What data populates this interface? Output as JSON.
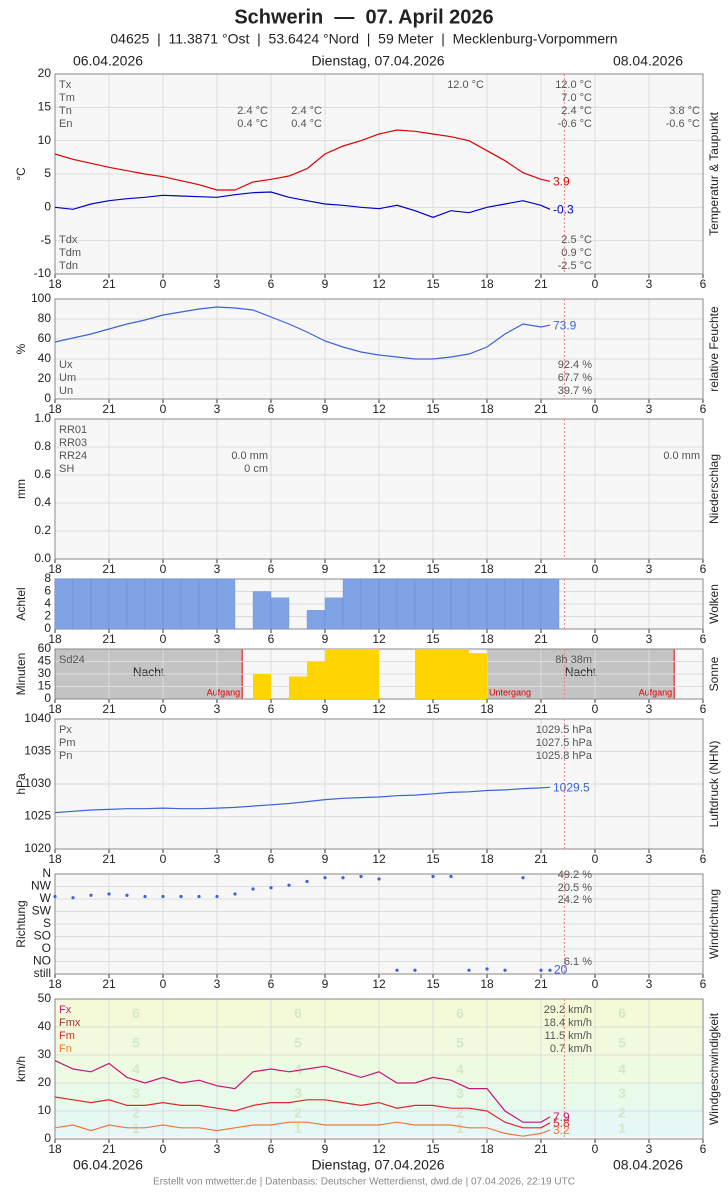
{
  "header": {
    "title": "Schwerin  —  07. April 2026",
    "subtitle": "04625  |  11.3871 °Ost  |  53.6424 °Nord  |  59 Meter  |  Mecklenburg-Vorpommern",
    "date_left": "06.04.2026",
    "date_center": "Dienstag, 07.04.2026",
    "date_right": "08.04.2026"
  },
  "footer": "Erstellt von mtwetter.de | Datenbasis: Deutscher Wetterdienst, dwd.de | 07.04.2026, 22:19 UTC",
  "time_axis": {
    "xlim": [
      -6,
      30
    ],
    "xticks": [
      {
        "value": -6,
        "label": "18"
      },
      {
        "value": -3,
        "label": "21"
      },
      0,
      3,
      6,
      9,
      12,
      15,
      18,
      21,
      {
        "value": 24,
        "label": "0"
      },
      {
        "value": 27,
        "label": "3"
      },
      {
        "value": 30,
        "label": "6"
      }
    ],
    "now": 22.3,
    "x": [
      -6,
      -5,
      -4,
      -3,
      -2,
      -1,
      0,
      1,
      2,
      3,
      4,
      5,
      6,
      7,
      8,
      9,
      10,
      11,
      12,
      13,
      14,
      15,
      16,
      17,
      18,
      19,
      20,
      21,
      21.5
    ]
  },
  "chart_data": [
    {
      "type": "line",
      "ylabel": "°C",
      "side_label": "Temperatur & Taupunkt",
      "ylim": [
        -10,
        20
      ],
      "yticks": [
        -10,
        -5,
        0,
        5,
        10,
        15,
        20
      ],
      "grid": true,
      "series": [
        {
          "color": "#e00000",
          "values": [
            8,
            7.2,
            6.6,
            6,
            5.5,
            5,
            4.6,
            4,
            3.4,
            2.6,
            2.6,
            3.8,
            4.2,
            4.7,
            5.8,
            8,
            9.2,
            10,
            11,
            11.6,
            11.4,
            11,
            10.6,
            10,
            8.5,
            7,
            5.2,
            4.2,
            3.9
          ]
        },
        {
          "color": "#0000cc",
          "values": [
            0,
            -0.3,
            0.5,
            1,
            1.3,
            1.5,
            1.8,
            1.7,
            1.6,
            1.5,
            1.9,
            2.2,
            2.3,
            1.5,
            1,
            0.5,
            0.3,
            0,
            -0.2,
            0.3,
            -0.5,
            -1.5,
            -0.5,
            -0.8,
            0,
            0.5,
            1,
            0.3,
            -0.3
          ]
        }
      ],
      "info": [
        {
          "label": "Tx",
          "values": [
            null,
            null,
            "12.0 °C",
            "12.0 °C",
            null
          ]
        },
        {
          "label": "Tm",
          "values": [
            null,
            null,
            null,
            "7.0 °C",
            null
          ]
        },
        {
          "label": "Tn",
          "values": [
            "2.4 °C",
            "2.4 °C",
            null,
            "2.4 °C",
            "3.8 °C"
          ]
        },
        {
          "label": "En",
          "values": [
            "0.4 °C",
            "0.4 °C",
            null,
            "-0.6 °C",
            "-0.6 °C"
          ]
        },
        {
          "label": "Tdx",
          "values": [
            null,
            null,
            null,
            "2.5 °C",
            null
          ]
        },
        {
          "label": "Tdm",
          "values": [
            null,
            null,
            null,
            "0.9 °C",
            null
          ]
        },
        {
          "label": "Tdn",
          "values": [
            null,
            null,
            null,
            "-2.5 °C",
            null
          ]
        }
      ]
    },
    {
      "type": "line",
      "ylabel": "%",
      "side_label": "relative Feuchte",
      "ylim": [
        0,
        100
      ],
      "yticks": [
        0,
        20,
        40,
        60,
        80,
        100
      ],
      "grid": true,
      "series": [
        {
          "color": "#3a64d8",
          "values": [
            57,
            61,
            65,
            70,
            75,
            79,
            84,
            87,
            90,
            92,
            91,
            89,
            82,
            75,
            67,
            58,
            52,
            47,
            44,
            42,
            40,
            40,
            42,
            45,
            52,
            65,
            75,
            72,
            73.9
          ]
        }
      ],
      "info": [
        {
          "label": "Ux",
          "values": [
            "92.4 %"
          ]
        },
        {
          "label": "Um",
          "values": [
            "67.7 %"
          ]
        },
        {
          "label": "Un",
          "values": [
            "39.7 %"
          ]
        }
      ]
    },
    {
      "type": "bar",
      "ylabel": "mm",
      "side_label": "Niederschlag",
      "ylim": [
        0,
        1
      ],
      "yticks": [
        {
          "value": 0,
          "label": "0.0"
        },
        0.2,
        0.4,
        0.6,
        0.8,
        {
          "value": 1,
          "label": "1.0"
        }
      ],
      "grid": true,
      "series": [],
      "info": [
        {
          "label": "RR01",
          "values": [
            null,
            null
          ]
        },
        {
          "label": "RR03",
          "values": [
            null,
            null
          ]
        },
        {
          "label": "RR24",
          "values": [
            "0.0 mm",
            "0.0 mm"
          ]
        },
        {
          "label": "SH",
          "values": [
            "0 cm",
            null
          ]
        }
      ]
    },
    {
      "type": "bar",
      "ylabel": "Achtel",
      "side_label": "Wolken",
      "ylim": [
        0,
        8
      ],
      "yticks": [
        0,
        2,
        4,
        6,
        8
      ],
      "grid": true,
      "series": [
        {
          "color": "#7fa3e4",
          "values": [
            8,
            8,
            8,
            8,
            8,
            8,
            8,
            8,
            8,
            8,
            0,
            6,
            5,
            0,
            3,
            5,
            8,
            8,
            8,
            8,
            8,
            8,
            8,
            8,
            8,
            8,
            8,
            8,
            null
          ]
        }
      ]
    },
    {
      "type": "bar",
      "ylabel": "Minuten",
      "side_label": "Sonne",
      "ylim": [
        0,
        60
      ],
      "yticks": [
        0,
        15,
        30,
        45,
        60
      ],
      "grid": true,
      "series": [
        {
          "color": "#ffd400",
          "values": [
            0,
            0,
            0,
            0,
            0,
            0,
            0,
            0,
            0,
            0,
            0,
            30,
            0,
            27,
            45,
            60,
            60,
            60,
            0,
            0,
            60,
            60,
            60,
            55,
            0,
            0,
            0,
            0,
            null
          ]
        }
      ],
      "nights": [
        {
          "from": -6,
          "to": 4.4,
          "label": "Nacht"
        },
        {
          "from": 18,
          "to": 28.4,
          "label": "Nacht"
        }
      ],
      "events": [
        {
          "x": 4.4,
          "label": "Aufgang"
        },
        {
          "x": 18,
          "label": "Untergang"
        },
        {
          "x": 28.4,
          "label": "Aufgang"
        }
      ],
      "info": [
        {
          "label": "Sd24",
          "values": [
            "8h 38m"
          ]
        }
      ]
    },
    {
      "type": "line",
      "ylabel": "hPa",
      "side_label": "Luftdruck (NHN)",
      "ylim": [
        1020,
        1040
      ],
      "yticks": [
        1020,
        1025,
        1030,
        1035,
        1040
      ],
      "grid": true,
      "series": [
        {
          "color": "#3a64d8",
          "values": [
            1025.6,
            1025.8,
            1026,
            1026.1,
            1026.2,
            1026.2,
            1026.3,
            1026.2,
            1026.2,
            1026.3,
            1026.4,
            1026.6,
            1026.8,
            1027,
            1027.3,
            1027.6,
            1027.8,
            1027.9,
            1028,
            1028.2,
            1028.3,
            1028.5,
            1028.7,
            1028.8,
            1029,
            1029.1,
            1029.3,
            1029.4,
            1029.5
          ]
        }
      ],
      "info": [
        {
          "label": "Px",
          "values": [
            "1029.5 hPa"
          ]
        },
        {
          "label": "Pm",
          "values": [
            "1027.5 hPa"
          ]
        },
        {
          "label": "Pn",
          "values": [
            "1025.8 hPa"
          ]
        }
      ]
    },
    {
      "type": "scatter",
      "ylabel": "Richtung",
      "side_label": "Windrichtung",
      "ylim": [
        0,
        8
      ],
      "yticks": [
        {
          "value": 8,
          "label": "N"
        },
        {
          "value": 7,
          "label": "NW"
        },
        {
          "value": 6,
          "label": "W"
        },
        {
          "value": 5,
          "label": "SW"
        },
        {
          "value": 4,
          "label": "S"
        },
        {
          "value": 3,
          "label": "SO"
        },
        {
          "value": 2,
          "label": "O"
        },
        {
          "value": 1,
          "label": "NO"
        },
        {
          "value": 0,
          "label": "still"
        }
      ],
      "grid": true,
      "series": [
        {
          "color": "#3a64d8",
          "end_text": "20",
          "values": [
            6.2,
            6.1,
            6.3,
            6.4,
            6.3,
            6.2,
            6.2,
            6.2,
            6.2,
            6.2,
            6.4,
            6.8,
            6.9,
            7.1,
            7.4,
            7.7,
            7.7,
            7.8,
            7.6,
            0.3,
            0.3,
            7.8,
            7.8,
            0.3,
            0.4,
            0.3,
            7.7,
            0.3,
            0.3
          ]
        }
      ],
      "info": [
        {
          "label": null,
          "values": [
            "49.2 %"
          ]
        },
        {
          "label": null,
          "values": [
            "20.5 %"
          ]
        },
        {
          "label": null,
          "values": [
            "24.2 %"
          ]
        },
        {
          "label": null,
          "values": [
            "6.1 %"
          ]
        }
      ]
    },
    {
      "type": "line",
      "ylabel": "km/h",
      "side_label": "Windgeschwindigkeit",
      "ylim": [
        0,
        50
      ],
      "yticks": [
        0,
        10,
        20,
        30,
        40,
        50
      ],
      "grid": true,
      "bands": [
        {
          "bft": 1,
          "from": 1,
          "to": 6,
          "color": "#e6f7f8"
        },
        {
          "bft": 2,
          "from": 6,
          "to": 12,
          "color": "#e6f8f2"
        },
        {
          "bft": 3,
          "from": 12,
          "to": 20,
          "color": "#e8fae8"
        },
        {
          "bft": 4,
          "from": 20,
          "to": 29,
          "color": "#edfbe2"
        },
        {
          "bft": 5,
          "from": 29,
          "to": 39,
          "color": "#f1fadc"
        },
        {
          "bft": 6,
          "from": 39,
          "to": 50,
          "color": "#f4fad8"
        }
      ],
      "series": [
        {
          "color": "#c8147a",
          "values": [
            28,
            25,
            24,
            27,
            22,
            20,
            22,
            20,
            21,
            19,
            18,
            24,
            25,
            24,
            25,
            26,
            24,
            22,
            24,
            20,
            20,
            22,
            21,
            18,
            18,
            10,
            6,
            6,
            7.9
          ]
        },
        {
          "color": "#e02828",
          "values": [
            15,
            14,
            13,
            14,
            12,
            12,
            13,
            12,
            12,
            11,
            10,
            12,
            13,
            13,
            14,
            14,
            13,
            12,
            13,
            11,
            12,
            12,
            11,
            11,
            10,
            6,
            4,
            4,
            5.8
          ]
        },
        {
          "color": "#f07838",
          "values": [
            4,
            5,
            3,
            5,
            4,
            4,
            5,
            4,
            4,
            3,
            4,
            5,
            5,
            6,
            6,
            5,
            5,
            5,
            5,
            6,
            5,
            5,
            5,
            4,
            4,
            2,
            1,
            2,
            3.2
          ]
        }
      ],
      "info": [
        {
          "label": "Fx",
          "color": "#c8147a",
          "values": [
            "29.2 km/h"
          ]
        },
        {
          "label": "Fmx",
          "color": "#a03030",
          "values": [
            "18.4 km/h"
          ]
        },
        {
          "label": "Fm",
          "color": "#e02828",
          "values": [
            "11.5 km/h"
          ]
        },
        {
          "label": "Fn",
          "color": "#f07838",
          "values": [
            "0.7 km/h"
          ]
        }
      ]
    }
  ]
}
